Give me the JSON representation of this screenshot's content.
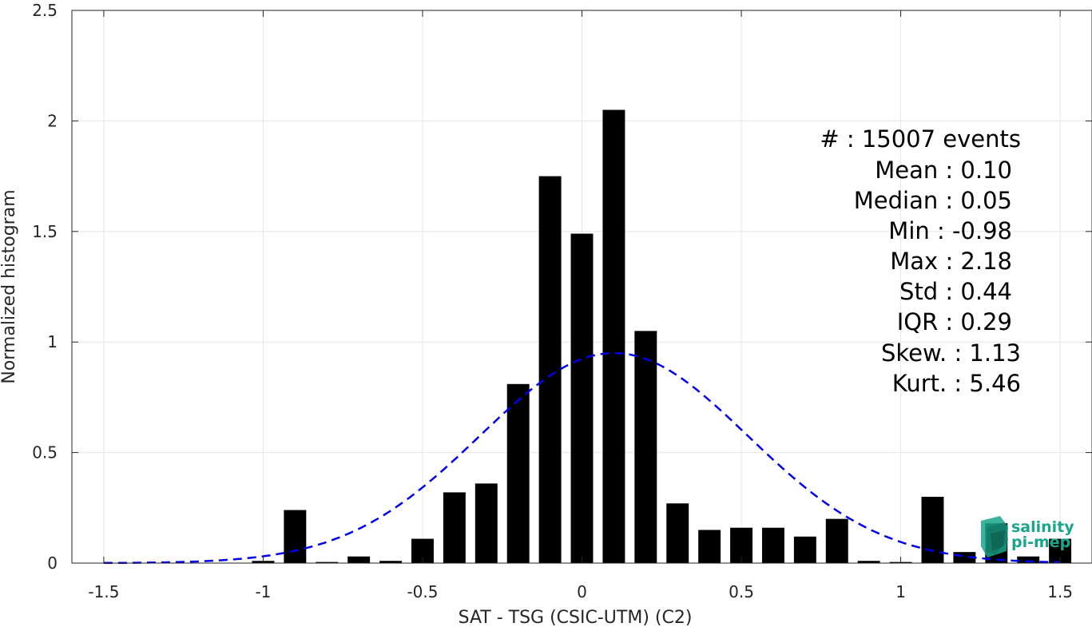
{
  "chart_data": {
    "type": "bar",
    "title": "",
    "xlabel": "SAT - TSG (CSIC-UTM) (C2)",
    "ylabel": "Normalized histogram",
    "xlim": [
      -1.6,
      1.6
    ],
    "ylim": [
      0,
      2.5
    ],
    "xticks": [
      -1.5,
      -1,
      -0.5,
      0,
      0.5,
      1,
      1.5
    ],
    "xtick_labels": [
      "-1.5",
      "-1",
      "-0.5",
      "0",
      "0.5",
      "1",
      "1.5"
    ],
    "yticks": [
      0,
      0.5,
      1,
      1.5,
      2,
      2.5
    ],
    "ytick_labels": [
      "0",
      "0.5",
      "1",
      "1.5",
      "2",
      "2.5"
    ],
    "grid": true,
    "bar_color": "#000000",
    "bar_width": 0.07,
    "series": [
      {
        "x": [
          -1.0,
          -0.9,
          -0.8,
          -0.7,
          -0.6,
          -0.5,
          -0.4,
          -0.3,
          -0.2,
          -0.1,
          0.0,
          0.1,
          0.2,
          0.3,
          0.4,
          0.5,
          0.6,
          0.7,
          0.8,
          0.9,
          1.0,
          1.1,
          1.2,
          1.3,
          1.4,
          1.5
        ],
        "values": [
          0.01,
          0.24,
          0.005,
          0.03,
          0.01,
          0.11,
          0.32,
          0.36,
          0.81,
          1.75,
          1.49,
          2.05,
          1.05,
          0.27,
          0.15,
          0.16,
          0.16,
          0.12,
          0.2,
          0.01,
          0.005,
          0.3,
          0.05,
          0.18,
          0.03,
          0.11
        ]
      }
    ],
    "fit_curve": {
      "type": "normal",
      "mean": 0.1,
      "std": 0.42,
      "color": "#0000ee",
      "style": "dashed"
    },
    "annotations": [
      "#  : 15007 events",
      "Mean : 0.10",
      "Median : 0.05",
      "Min : -0.98",
      "Max : 2.18",
      "Std : 0.44",
      "IQR : 0.29",
      "Skew. : 1.13",
      "Kurt. : 5.46"
    ]
  },
  "logo": {
    "line1": "salinity",
    "line2": "pi-mep",
    "color": "#1aa58c"
  }
}
